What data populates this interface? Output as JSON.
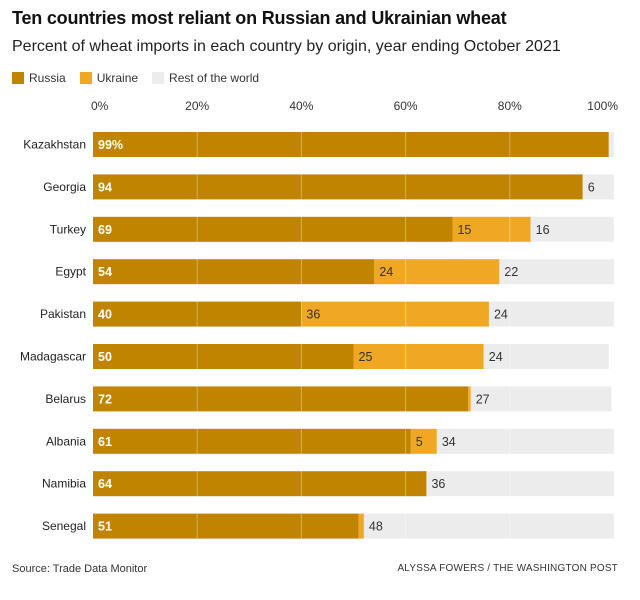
{
  "title": "Ten countries most reliant on Russian and Ukrainian wheat",
  "subtitle": "Percent of wheat imports in each country by origin, year ending October 2021",
  "legend": [
    {
      "label": "Russia",
      "color": "#c08400"
    },
    {
      "label": "Ukraine",
      "color": "#f0a824"
    },
    {
      "label": "Rest of the world",
      "color": "#ececec"
    }
  ],
  "chart_data": {
    "type": "bar",
    "orientation": "horizontal",
    "stacked": true,
    "title": "Ten countries most reliant on Russian and Ukrainian wheat",
    "subtitle": "Percent of wheat imports in each country by origin, year ending October 2021",
    "categories": [
      "Kazakhstan",
      "Georgia",
      "Turkey",
      "Egypt",
      "Pakistan",
      "Madagascar",
      "Belarus",
      "Albania",
      "Namibia",
      "Senegal"
    ],
    "series": [
      {
        "name": "Russia",
        "color": "#c08400",
        "values": [
          99,
          94,
          69,
          54,
          40,
          50,
          72,
          61,
          64,
          51
        ],
        "labels": [
          "99%",
          "94",
          "69",
          "54",
          "40",
          "50",
          "72",
          "61",
          "64",
          "51"
        ]
      },
      {
        "name": "Ukraine",
        "color": "#f0a824",
        "values": [
          0,
          0,
          15,
          24,
          36,
          25,
          0.5,
          5,
          0,
          1
        ],
        "labels": [
          "",
          "",
          "15",
          "24",
          "36",
          "25",
          "",
          "5",
          "",
          ""
        ]
      },
      {
        "name": "Rest of the world",
        "color": "#ececec",
        "values": [
          1,
          6,
          16,
          22,
          24,
          24,
          27,
          34,
          36,
          48
        ],
        "labels": [
          "",
          "6",
          "16",
          "22",
          "24",
          "24",
          "27",
          "34",
          "36",
          "48"
        ]
      }
    ],
    "xlim": [
      0,
      100
    ],
    "xticks": [
      0,
      20,
      40,
      60,
      80,
      100
    ],
    "xtick_labels": [
      "0%",
      "20%",
      "40%",
      "60%",
      "80%",
      "100%"
    ],
    "xaxis_position": "top",
    "grid": true,
    "legend_position": "top-left"
  },
  "source": "Source: Trade Data Monitor",
  "credit": "ALYSSA FOWERS / THE WASHINGTON POST"
}
